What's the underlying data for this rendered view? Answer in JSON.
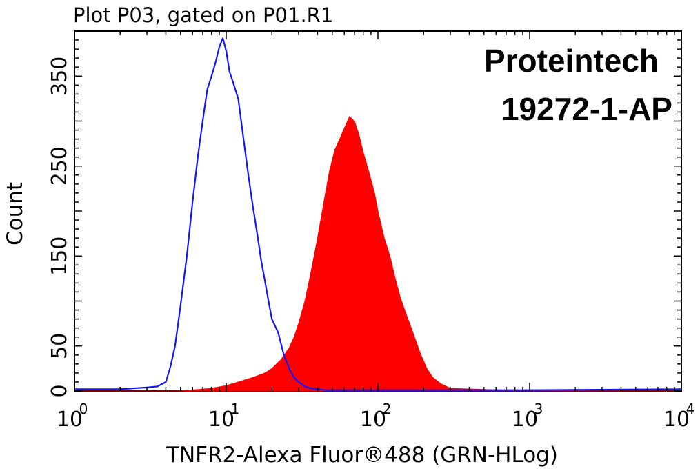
{
  "chart_data": {
    "type": "area",
    "title": "Plot P03, gated on P01.R1",
    "xlabel": "TNFR2-Alexa Fluor®488 (GRN-HLog)",
    "ylabel": "Count",
    "x_scale": "log",
    "xlim": [
      1,
      10000
    ],
    "ylim": [
      0,
      400
    ],
    "x_ticks": [
      {
        "base": "10",
        "exp": "0",
        "value": 1
      },
      {
        "base": "10",
        "exp": "1",
        "value": 10
      },
      {
        "base": "10",
        "exp": "2",
        "value": 100
      },
      {
        "base": "10",
        "exp": "3",
        "value": 1000
      },
      {
        "base": "10",
        "exp": "4",
        "value": 10000
      }
    ],
    "y_ticks": [
      {
        "label": "0",
        "value": 0
      },
      {
        "label": "50",
        "value": 50
      },
      {
        "label": "150",
        "value": 150
      },
      {
        "label": "250",
        "value": 250
      },
      {
        "label": "350",
        "value": 350
      }
    ],
    "annotations": [
      "Proteintech",
      "19272-1-AP"
    ],
    "grid": false,
    "series": [
      {
        "style": "outline",
        "color": "#1414ff",
        "x": [
          1,
          2,
          3,
          3.5,
          4,
          4.3,
          4.6,
          5,
          5.5,
          6,
          6.5,
          7,
          7.5,
          8,
          8.5,
          9,
          9.5,
          10,
          10.5,
          11,
          12,
          13,
          14,
          15,
          16,
          17,
          18,
          19,
          20,
          22,
          24,
          26,
          28,
          30,
          33,
          36,
          40,
          45,
          50,
          60,
          80,
          100,
          200,
          1000,
          10000
        ],
        "y": [
          2,
          2,
          4,
          5,
          10,
          28,
          50,
          95,
          150,
          210,
          260,
          300,
          335,
          350,
          365,
          382,
          392,
          378,
          355,
          345,
          325,
          280,
          240,
          205,
          175,
          145,
          122,
          100,
          80,
          65,
          40,
          25,
          15,
          10,
          5,
          3,
          2,
          1,
          1,
          1,
          1,
          1,
          1,
          1,
          2
        ]
      },
      {
        "style": "filled",
        "color": "#ff0000",
        "x": [
          1,
          5,
          8,
          10,
          12,
          15,
          18,
          20,
          23,
          26,
          28,
          30,
          33,
          36,
          40,
          44,
          48,
          52,
          56,
          60,
          65,
          70,
          75,
          80,
          85,
          90,
          95,
          100,
          110,
          120,
          130,
          140,
          150,
          170,
          190,
          210,
          230,
          260,
          300,
          1000,
          10000
        ],
        "y": [
          0,
          0,
          3,
          6,
          10,
          15,
          20,
          25,
          35,
          48,
          60,
          75,
          100,
          130,
          170,
          210,
          245,
          268,
          280,
          292,
          305,
          300,
          285,
          265,
          250,
          235,
          220,
          200,
          170,
          150,
          125,
          105,
          90,
          65,
          42,
          25,
          15,
          8,
          3,
          0,
          0
        ]
      }
    ]
  }
}
